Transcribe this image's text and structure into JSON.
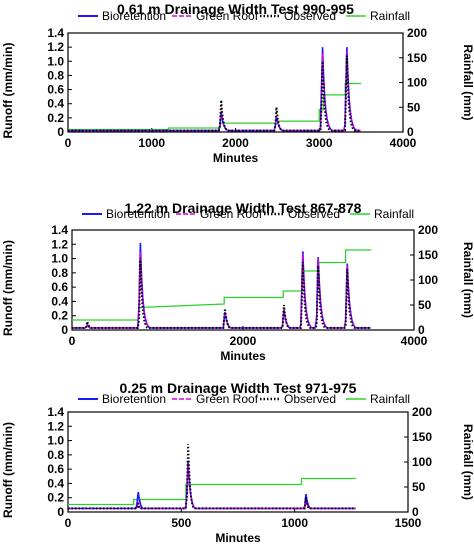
{
  "colors": {
    "bioretention": "#1a1aff",
    "green_roof": "#e000e0",
    "observed": "#000000",
    "rainfall": "#2ed12e"
  },
  "chart_data": [
    {
      "type": "line",
      "title": "0.61 m Drainage Width Test 990-995",
      "xlabel": "Minutes",
      "ylabel": "Runoff (mm/min)",
      "y2label": "Rainfall (mm)",
      "xlim": [
        0,
        4000
      ],
      "ylim": [
        0,
        1.4
      ],
      "y2lim": [
        0,
        200
      ],
      "x_ticks": [
        "0",
        "1000",
        "2000",
        "3000",
        "4000"
      ],
      "y_ticks": [
        "0",
        "0.2",
        "0.4",
        "0.6",
        "0.8",
        "1.0",
        "1.2",
        "1.4"
      ],
      "y2_ticks": [
        "0",
        "50",
        "100",
        "150",
        "200"
      ],
      "legend": [
        "Bioretention",
        "Green Roof",
        "Observed",
        "Rainfall"
      ],
      "grid": false,
      "runoff_peaks": [
        {
          "x": 1830,
          "bio": 0.28,
          "green": 0.3,
          "obs": 0.45
        },
        {
          "x": 2490,
          "bio": 0.22,
          "green": 0.23,
          "obs": 0.35
        },
        {
          "x": 3040,
          "bio": 1.2,
          "green": 1.12,
          "obs": 1.0
        },
        {
          "x": 3330,
          "bio": 1.2,
          "green": 1.15,
          "obs": 1.08
        }
      ],
      "runoff_baseline": 0.02,
      "rainfall": [
        [
          0,
          5
        ],
        [
          1200,
          5
        ],
        [
          1200,
          8
        ],
        [
          1810,
          8
        ],
        [
          1810,
          18
        ],
        [
          2480,
          18
        ],
        [
          2480,
          22
        ],
        [
          3000,
          22
        ],
        [
          3000,
          45
        ],
        [
          3050,
          45
        ],
        [
          3050,
          75
        ],
        [
          3310,
          75
        ],
        [
          3310,
          98
        ],
        [
          3500,
          98
        ]
      ]
    },
    {
      "type": "line",
      "title": "1.22 m Drainage Width Test 867-878",
      "xlabel": "Minutes",
      "ylabel": "Runoff (mm/min)",
      "y2label": "Rainfall (mm)",
      "xlim": [
        0,
        4000
      ],
      "ylim": [
        0,
        1.4
      ],
      "y2lim": [
        0,
        200
      ],
      "x_ticks": [
        "0",
        "2000",
        "4000"
      ],
      "y_ticks": [
        "0",
        "0.2",
        "0.4",
        "0.6",
        "0.8",
        "1.0",
        "1.2",
        "1.4"
      ],
      "y2_ticks": [
        "0",
        "50",
        "100",
        "150",
        "200"
      ],
      "legend": [
        "Bioretention",
        "Green Roof",
        "Observed",
        "Rainfall"
      ],
      "grid": false,
      "runoff_peaks": [
        {
          "x": 180,
          "bio": 0.08,
          "green": 0.08,
          "obs": 0.12
        },
        {
          "x": 800,
          "bio": 1.22,
          "green": 1.1,
          "obs": 0.98
        },
        {
          "x": 1790,
          "bio": 0.25,
          "green": 0.25,
          "obs": 0.3
        },
        {
          "x": 2480,
          "bio": 0.28,
          "green": 0.28,
          "obs": 0.35
        },
        {
          "x": 2700,
          "bio": 1.1,
          "green": 1.07,
          "obs": 0.95
        },
        {
          "x": 2880,
          "bio": 1.02,
          "green": 1.0,
          "obs": 0.9
        },
        {
          "x": 3220,
          "bio": 0.93,
          "green": 0.9,
          "obs": 0.85
        }
      ],
      "runoff_baseline": 0.03,
      "rainfall": [
        [
          0,
          20
        ],
        [
          780,
          20
        ],
        [
          780,
          45
        ],
        [
          1780,
          52
        ],
        [
          1780,
          65
        ],
        [
          2470,
          65
        ],
        [
          2470,
          78
        ],
        [
          2690,
          78
        ],
        [
          2690,
          118
        ],
        [
          2870,
          118
        ],
        [
          2870,
          135
        ],
        [
          3200,
          135
        ],
        [
          3200,
          160
        ],
        [
          3500,
          160
        ]
      ]
    },
    {
      "type": "line",
      "title": "0.25 m Drainage Width Test 971-975",
      "xlabel": "Minutes",
      "ylabel": "Runoff (mm/min)",
      "y2label": "Rainfall (mm)",
      "xlim": [
        0,
        1500
      ],
      "ylim": [
        0,
        1.4
      ],
      "y2lim": [
        0,
        200
      ],
      "x_ticks": [
        "0",
        "500",
        "1000",
        "1500"
      ],
      "y_ticks": [
        "0",
        "0.2",
        "0.4",
        "0.6",
        "0.8",
        "1.0",
        "1.2",
        "1.4"
      ],
      "y2_ticks": [
        "0",
        "50",
        "100",
        "150",
        "200"
      ],
      "legend": [
        "Bioretention",
        "Green Roof",
        "Observed",
        "Rainfall"
      ],
      "grid": false,
      "runoff_peaks": [
        {
          "x": 310,
          "bio": 0.28,
          "green": 0.12,
          "obs": 0.12
        },
        {
          "x": 530,
          "bio": 0.72,
          "green": 0.68,
          "obs": 0.95
        },
        {
          "x": 1050,
          "bio": 0.25,
          "green": 0.17,
          "obs": 0.2
        }
      ],
      "runoff_baseline": 0.05,
      "rainfall": [
        [
          0,
          15
        ],
        [
          290,
          15
        ],
        [
          290,
          25
        ],
        [
          520,
          25
        ],
        [
          520,
          55
        ],
        [
          1030,
          55
        ],
        [
          1030,
          67
        ],
        [
          1270,
          67
        ]
      ]
    }
  ]
}
